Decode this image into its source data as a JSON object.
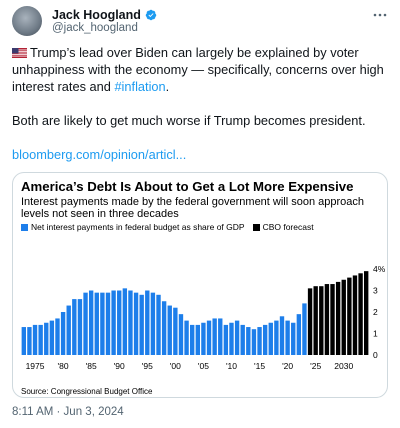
{
  "author": {
    "display_name": "Jack Hoogland",
    "handle": "@jack_hoogland"
  },
  "icons": {
    "verified": "verified-badge-icon",
    "more": "more-options-icon",
    "flag": "us-flag-icon"
  },
  "tweet": {
    "para1_a": "Trump’s lead over Biden can largely be explained by voter unhappiness with the economy — specifically, concerns over high interest rates and ",
    "hashtag": "#inflation",
    "para1_b": ".",
    "para2": "Both are likely to get much worse if Trump becomes president.",
    "link": "bloomberg.com/opinion/articl..."
  },
  "timestamp": "8:11 AM · Jun 3, 2024",
  "colors": {
    "blue": "#1d7eea",
    "black": "#000000",
    "link": "#1d9bf0"
  },
  "chart_data": {
    "type": "bar",
    "title": "America’s Debt Is About to Get a Lot More Expensive",
    "subtitle": "Interest payments made by the federal government will soon approach levels not seen in three decades",
    "series": [
      {
        "name": "Net interest payments in federal budget as share of GDP",
        "color": "#1d7eea",
        "x": [
          1973,
          1974,
          1975,
          1976,
          1977,
          1978,
          1979,
          1980,
          1981,
          1982,
          1983,
          1984,
          1985,
          1986,
          1987,
          1988,
          1989,
          1990,
          1991,
          1992,
          1993,
          1994,
          1995,
          1996,
          1997,
          1998,
          1999,
          2000,
          2001,
          2002,
          2003,
          2004,
          2005,
          2006,
          2007,
          2008,
          2009,
          2010,
          2011,
          2012,
          2013,
          2014,
          2015,
          2016,
          2017,
          2018,
          2019,
          2020,
          2021,
          2022,
          2023
        ],
        "values": [
          1.3,
          1.3,
          1.4,
          1.4,
          1.5,
          1.6,
          1.7,
          2.0,
          2.3,
          2.6,
          2.6,
          2.9,
          3.0,
          2.9,
          2.9,
          2.9,
          3.0,
          3.0,
          3.1,
          3.0,
          2.9,
          2.8,
          3.0,
          2.9,
          2.8,
          2.5,
          2.3,
          2.2,
          1.9,
          1.6,
          1.4,
          1.4,
          1.5,
          1.6,
          1.7,
          1.7,
          1.4,
          1.5,
          1.6,
          1.4,
          1.3,
          1.2,
          1.3,
          1.4,
          1.5,
          1.6,
          1.8,
          1.6,
          1.5,
          1.9,
          2.4
        ]
      },
      {
        "name": "CBO forecast",
        "color": "#000000",
        "x": [
          2024,
          2025,
          2026,
          2027,
          2028,
          2029,
          2030,
          2031,
          2032,
          2033,
          2034
        ],
        "values": [
          3.1,
          3.2,
          3.2,
          3.3,
          3.3,
          3.4,
          3.5,
          3.6,
          3.7,
          3.8,
          3.9
        ]
      }
    ],
    "xtick_labels": [
      "1975",
      "'80",
      "'85",
      "'90",
      "'95",
      "'00",
      "'05",
      "'10",
      "'15",
      "'20",
      "'25",
      "2030"
    ],
    "xtick_values": [
      1975,
      1980,
      1985,
      1990,
      1995,
      2000,
      2005,
      2010,
      2015,
      2020,
      2025,
      2030
    ],
    "ytick_labels": [
      "0",
      "1",
      "2",
      "3",
      "4%"
    ],
    "ytick_values": [
      0,
      1,
      2,
      3,
      4
    ],
    "ylim": [
      0,
      4
    ],
    "xlim": [
      1973,
      2034
    ],
    "legend_position": "top-left",
    "grid": false,
    "source": "Source: Congressional Budget Office"
  }
}
